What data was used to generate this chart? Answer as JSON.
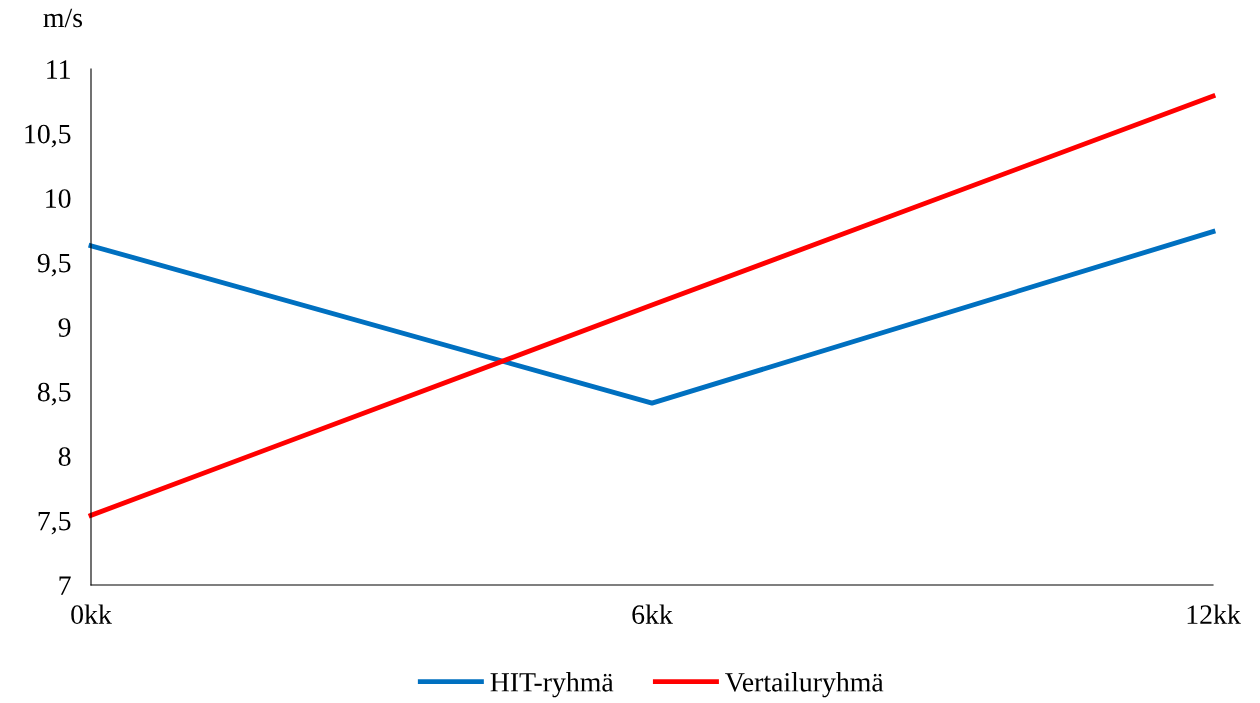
{
  "chart_data": {
    "type": "line",
    "ylabel": "m/s",
    "categories": [
      "0kk",
      "6kk",
      "12kk"
    ],
    "series": [
      {
        "name": "HIT-ryhmä",
        "color": "#0070c0",
        "values": [
          9.63,
          8.41,
          9.74
        ]
      },
      {
        "name": "Vertailuryhmä",
        "color": "#ff0000",
        "values": [
          7.54,
          9.17,
          10.79
        ]
      }
    ],
    "ylim": [
      7,
      11
    ],
    "yticks": [
      7,
      {
        "value": 7.5,
        "label": "7,5"
      },
      8,
      {
        "value": 8.5,
        "label": "8,5"
      },
      9,
      {
        "value": 9.5,
        "label": "9,5"
      },
      10,
      {
        "value": 10.5,
        "label": "10,5"
      },
      11
    ],
    "grid": false,
    "legend": "bottom",
    "marker": "none",
    "line_style": "solid"
  }
}
